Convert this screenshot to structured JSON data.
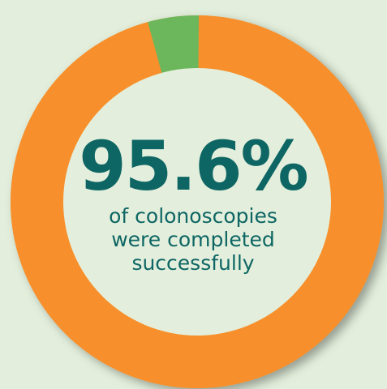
{
  "headline": {
    "value_text": "95.6%",
    "caption_lines": [
      "of colonoscopies",
      "were completed",
      "successfully"
    ]
  },
  "colors": {
    "background": "#e3efdc",
    "primary_segment": "#f7902c",
    "secondary_segment": "#6cb65b",
    "center_fill": "#e3efdc",
    "text": "#0e6664"
  },
  "chart_data": {
    "type": "pie",
    "title": "",
    "slices": [
      {
        "label": "",
        "value": 95.6,
        "color": "#f7902c"
      },
      {
        "label": "",
        "value": 4.4,
        "color": "#6cb65b"
      }
    ]
  }
}
